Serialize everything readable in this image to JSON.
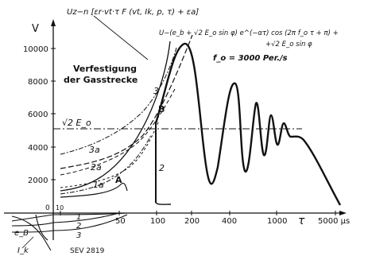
{
  "figure": {
    "y_axis_unit": "V",
    "y_ticks": [
      "10000",
      "8000",
      "6000",
      "4000",
      "2000"
    ],
    "x_origin_label": "0",
    "x_ticks": [
      "10",
      "50",
      "100",
      "200",
      "400",
      "1000",
      "5000 µs"
    ],
    "tau_label": "τ",
    "formula_top": "U_z - n [ε_r · vt · τ F (vt, I_k, p, τ) + ε_a]",
    "formula_top_display": "Uz−n [εr·vt·τ F (vt, Ik, p, τ) + εa]",
    "formula_main_line1": "U−(e_b + √2 E_o sin φ) e^(−ατ) cos (2π f_o τ + π) +",
    "formula_main_line2": "+√2 E_o sin φ",
    "frequency_label": "f_o = 3000 Per./s",
    "annotation": [
      "Verfestigung",
      "der Gasstrecke"
    ],
    "amplitude_label": "√2 E_o",
    "curve_labels": [
      "1",
      "2",
      "3",
      "1a",
      "2a",
      "3a",
      "A",
      "B",
      "2",
      "3"
    ],
    "negative_labels": [
      "e_B",
      "I_k"
    ],
    "reference": "SEV 2819"
  }
}
